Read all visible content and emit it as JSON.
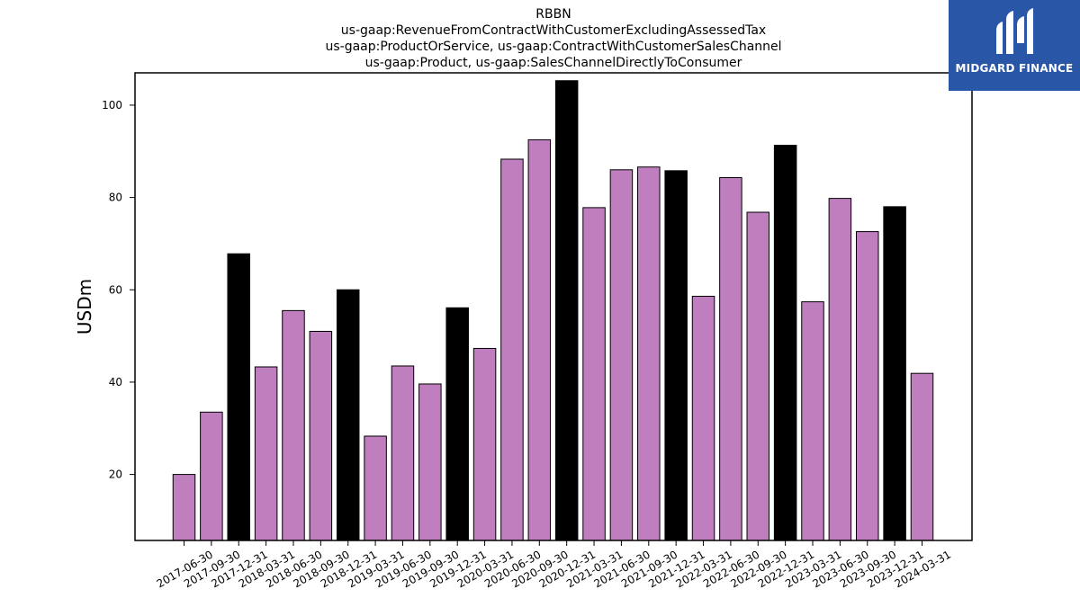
{
  "chart_data": {
    "type": "bar",
    "title": [
      "RBBN",
      "us-gaap:RevenueFromContractWithCustomerExcludingAssessedTax",
      "us-gaap:ProductOrService, us-gaap:ContractWithCustomerSalesChannel",
      "us-gaap:Product, us-gaap:SalesChannelDirectlyToConsumer"
    ],
    "xlabel": "",
    "ylabel": "USDm",
    "ylim": [
      5.7,
      107
    ],
    "yticks": [
      20,
      40,
      60,
      80,
      100
    ],
    "grid": false,
    "categories": [
      "2017-06-30",
      "2017-09-30",
      "2017-12-31",
      "2018-03-31",
      "2018-06-30",
      "2018-09-30",
      "2018-12-31",
      "2019-03-31",
      "2019-06-30",
      "2019-09-30",
      "2019-12-31",
      "2020-03-31",
      "2020-06-30",
      "2020-09-30",
      "2020-12-31",
      "2021-03-31",
      "2021-06-30",
      "2021-09-30",
      "2021-12-31",
      "2022-03-31",
      "2022-06-30",
      "2022-09-30",
      "2022-12-31",
      "2023-03-31",
      "2023-06-30",
      "2023-09-30",
      "2023-12-31",
      "2024-03-31"
    ],
    "values": [
      20.0,
      33.5,
      67.8,
      43.3,
      55.5,
      51.0,
      60.0,
      28.3,
      43.5,
      39.6,
      56.1,
      47.3,
      88.3,
      92.5,
      105.3,
      77.8,
      86.0,
      86.6,
      85.8,
      58.6,
      84.3,
      76.8,
      91.3,
      57.4,
      79.8,
      72.6,
      78.0,
      41.9
    ],
    "colors": {
      "quarter": "#bf7fbf",
      "year_end": "#000000",
      "edge": "#000000"
    }
  },
  "logo": {
    "text": "MIDGARD FINANCE",
    "icon": "midgard-logo-icon"
  }
}
